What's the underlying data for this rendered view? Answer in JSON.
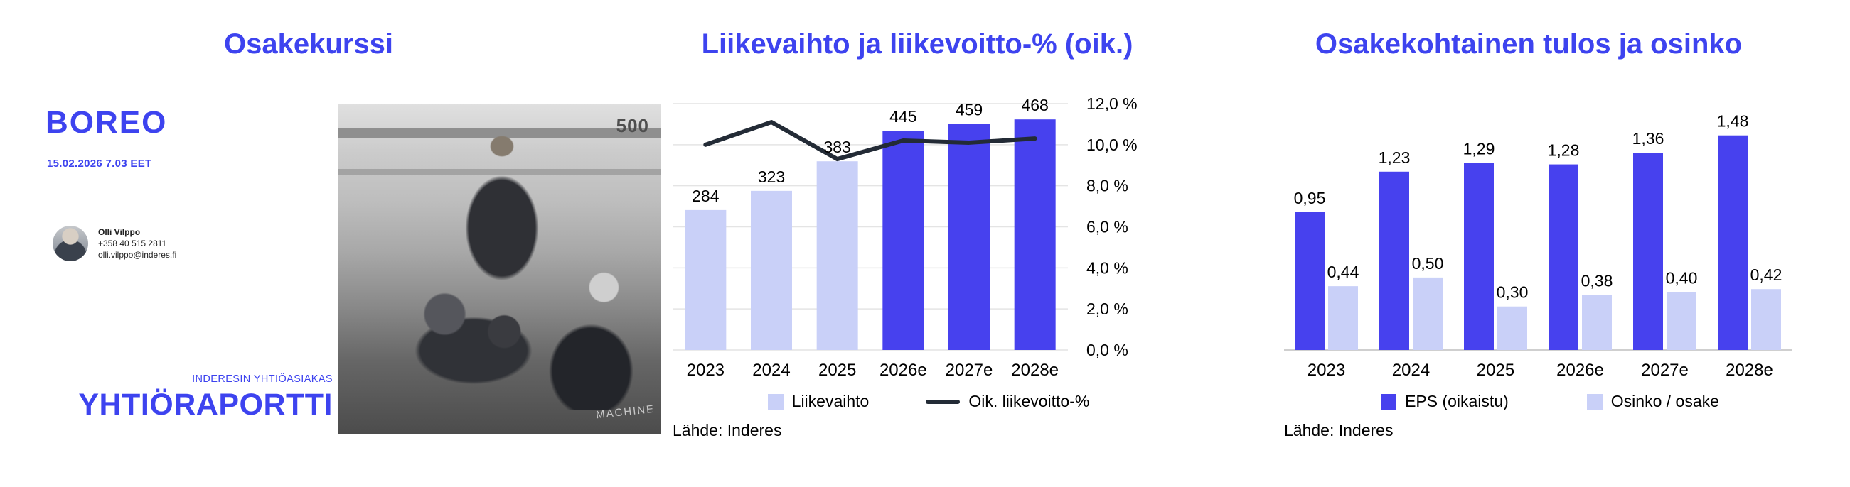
{
  "sections": {
    "left_title": "Osakekurssi"
  },
  "brand": {
    "company": "BOREO",
    "timestamp": "15.02.2026 7.03 EET",
    "analyst": {
      "name": "Olli Vilppo",
      "phone": "+358 40 515 2811",
      "email": "olli.vilppo@inderes.fi"
    },
    "client_badge": "INDERESIN YHTIÖASIAKAS",
    "report_type": "YHTIÖRAPORTTI"
  },
  "photo": {
    "shelf_label": "500",
    "machine_label": "MACHINE"
  },
  "colors": {
    "accent": "#3d43ef",
    "bar_dark": "#4741ee",
    "bar_light": "#c9d0f8",
    "line": "#232b36",
    "grid": "#e4e4e4",
    "baseline": "#cfcfcf"
  },
  "chart_data": [
    {
      "type": "bar+line",
      "title": "Liikevaihto ja liikevoitto-% (oik.)",
      "categories": [
        "2023",
        "2024",
        "2025",
        "2026e",
        "2027e",
        "2028e"
      ],
      "series": [
        {
          "name": "Liikevaihto",
          "type": "bar",
          "axis": "left",
          "values": [
            284,
            323,
            383,
            445,
            459,
            468
          ],
          "labels": [
            "284",
            "323",
            "383",
            "445",
            "459",
            "468"
          ],
          "point_styles": [
            "light",
            "light",
            "light",
            "dark",
            "dark",
            "dark"
          ]
        },
        {
          "name": "Oik. liikevoitto-%",
          "type": "line",
          "axis": "right",
          "values": [
            10.0,
            11.1,
            9.3,
            10.2,
            10.1,
            10.3
          ]
        }
      ],
      "left_ylim": [
        0,
        500
      ],
      "right_ylim": [
        0,
        12
      ],
      "right_ticks": [
        "12,0 %",
        "10,0 %",
        "8,0 %",
        "6,0 %",
        "4,0 %",
        "2,0 %",
        "0,0 %"
      ],
      "grid": "horizontal",
      "legend_position": "bottom",
      "source": "Lähde: Inderes"
    },
    {
      "type": "bar",
      "title": "Osakekohtainen tulos ja osinko",
      "categories": [
        "2023",
        "2024",
        "2025",
        "2026e",
        "2027e",
        "2028e"
      ],
      "series": [
        {
          "name": "EPS (oikaistu)",
          "style": "dark",
          "values": [
            0.95,
            1.23,
            1.29,
            1.28,
            1.36,
            1.48
          ],
          "labels": [
            "0,95",
            "1,23",
            "1,29",
            "1,28",
            "1,36",
            "1,48"
          ]
        },
        {
          "name": "Osinko / osake",
          "style": "light",
          "values": [
            0.44,
            0.5,
            0.3,
            0.38,
            0.4,
            0.42
          ],
          "labels": [
            "0,44",
            "0,50",
            "0,30",
            "0,38",
            "0,40",
            "0,42"
          ]
        }
      ],
      "ylim": [
        0,
        1.65
      ],
      "grid": "off",
      "legend_position": "bottom",
      "source": "Lähde: Inderes"
    }
  ]
}
